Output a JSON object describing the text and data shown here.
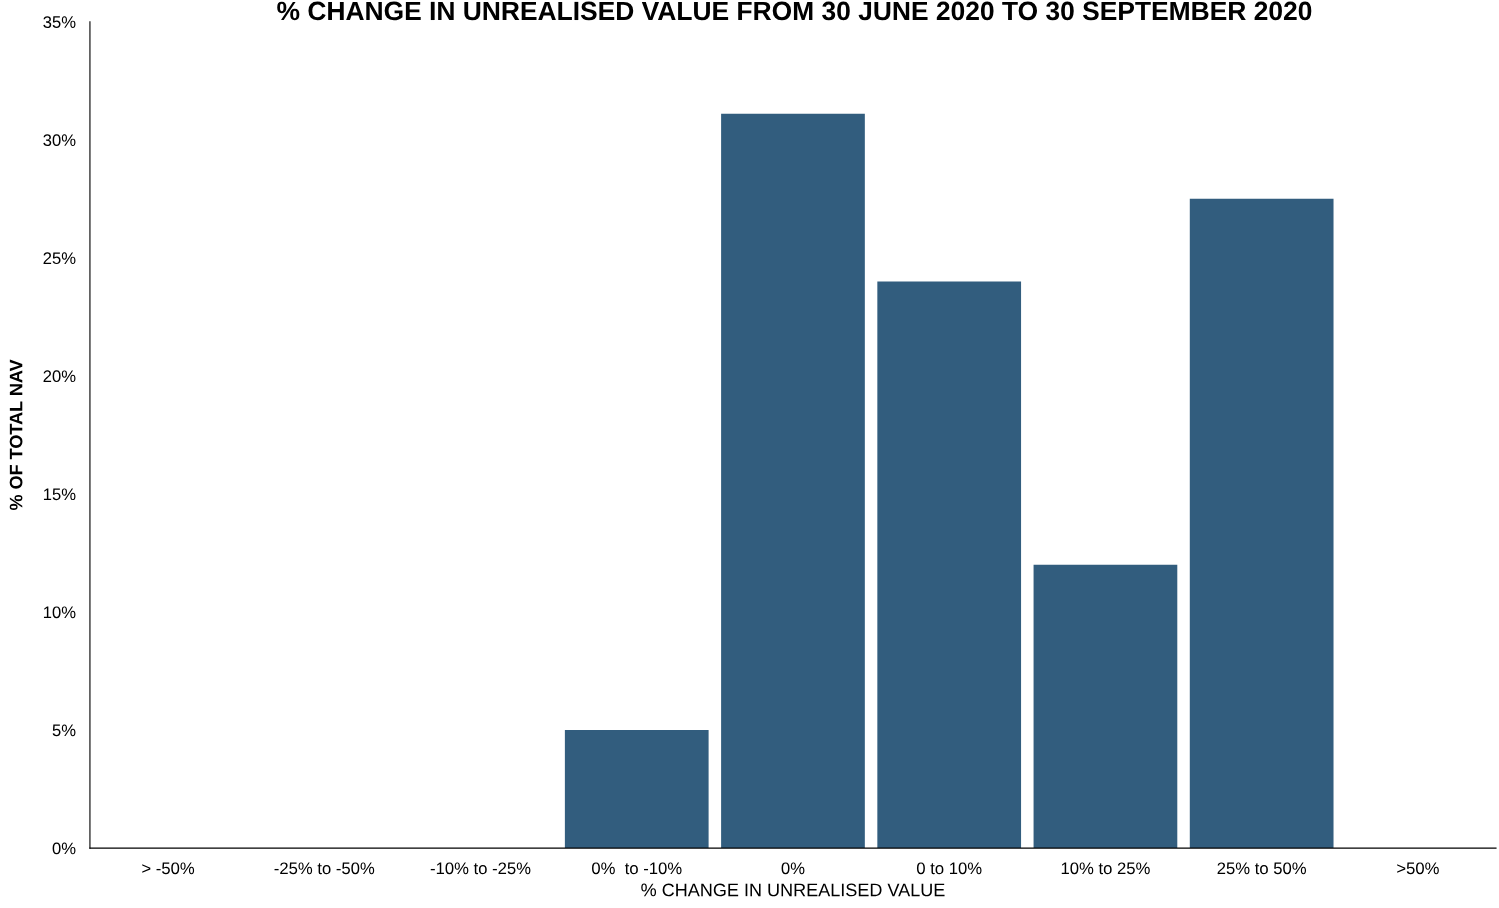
{
  "chart_data": {
    "type": "bar",
    "title": "% CHANGE IN UNREALISED VALUE FROM 30 JUNE 2020 TO 30 SEPTEMBER 2020",
    "xlabel": "% CHANGE IN UNREALISED VALUE",
    "ylabel": "% OF TOTAL NAV",
    "categories": [
      "> -50%",
      "-25% to -50%",
      "-10% to -25%",
      "0%  to -10%",
      "0%",
      "0 to 10%",
      "10% to 25%",
      "25% to 50%",
      ">50%"
    ],
    "values": [
      0,
      0,
      0,
      5.0,
      31.1,
      24.0,
      12.0,
      27.5,
      0
    ],
    "color": "#325d7e",
    "ylim": [
      0,
      35
    ],
    "yticks": [
      {
        "value": 0,
        "label": "0%"
      },
      {
        "value": 5,
        "label": "5%"
      },
      {
        "value": 10,
        "label": "10%"
      },
      {
        "value": 15,
        "label": "15%"
      },
      {
        "value": 20,
        "label": "20%"
      },
      {
        "value": 25,
        "label": "25%"
      },
      {
        "value": 30,
        "label": "30%"
      },
      {
        "value": 35,
        "label": "35%"
      }
    ],
    "grid": false,
    "legend": false
  }
}
